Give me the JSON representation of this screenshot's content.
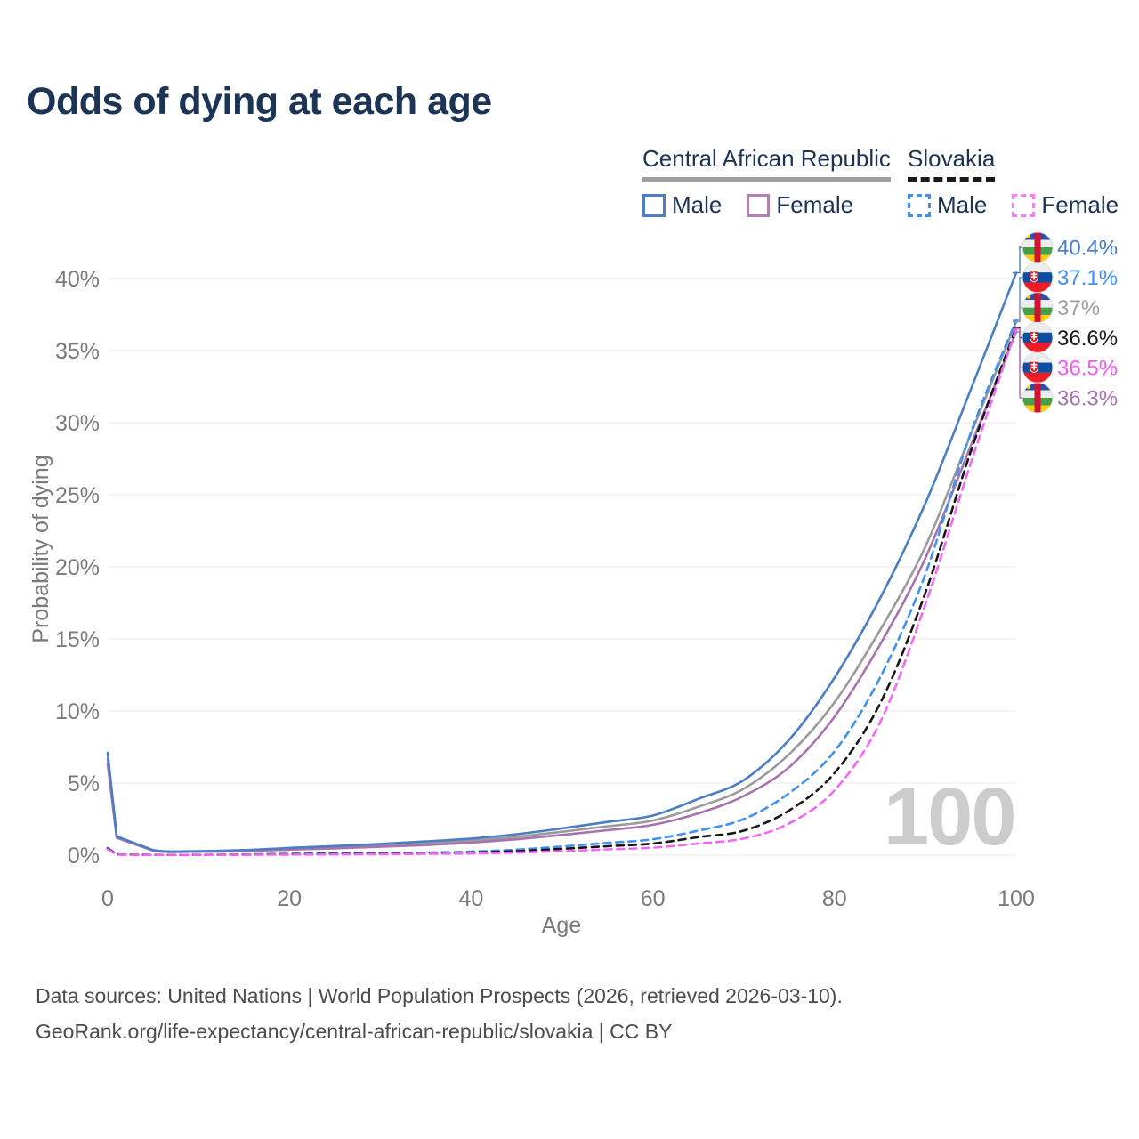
{
  "title": "Odds of dying at each age",
  "watermark": "100",
  "legend": {
    "groups": [
      {
        "label": "Central African Republic",
        "underline_color": "#9e9e9e",
        "underline_style": "solid",
        "items": [
          {
            "label": "Male",
            "color": "#4a7dc4",
            "style": "solid"
          },
          {
            "label": "Female",
            "color": "#b57fb5",
            "style": "solid"
          }
        ]
      },
      {
        "label": "Slovakia",
        "underline_color": "#1a1a1a",
        "underline_style": "dashed",
        "items": [
          {
            "label": "Male",
            "color": "#4191f5",
            "style": "dashed"
          },
          {
            "label": "Female",
            "color": "#f97df9",
            "style": "dashed"
          }
        ]
      }
    ]
  },
  "chart_data": {
    "type": "line",
    "title": "Odds of dying at each age",
    "xlabel": "Age",
    "ylabel": "Probability of dying",
    "xlim": [
      0,
      100
    ],
    "ylim": [
      0,
      42
    ],
    "grid": "horizontal",
    "legend_position": "top-right",
    "xticks": [
      0,
      20,
      40,
      60,
      80,
      100
    ],
    "yticks": [
      0,
      5,
      10,
      15,
      20,
      25,
      30,
      35,
      40
    ],
    "ytick_labels": [
      "0%",
      "5%",
      "10%",
      "15%",
      "20%",
      "25%",
      "30%",
      "35%",
      "40%"
    ],
    "x": [
      0,
      1,
      5,
      10,
      15,
      20,
      25,
      30,
      35,
      40,
      45,
      50,
      55,
      60,
      65,
      70,
      75,
      80,
      85,
      90,
      95,
      100
    ],
    "series": [
      {
        "id": "car-both",
        "name": "Central African Republic",
        "sex": "both",
        "color": "#9a9a9a",
        "dash": false,
        "values": [
          6.7,
          1.25,
          0.33,
          0.26,
          0.31,
          0.44,
          0.55,
          0.68,
          0.82,
          1.0,
          1.27,
          1.62,
          2.0,
          2.4,
          3.35,
          4.6,
          7.0,
          10.6,
          15.6,
          21.4,
          29.2,
          37.0
        ]
      },
      {
        "id": "car-female",
        "name": "Central African Republic",
        "sex": "female",
        "color": "#a673ae",
        "dash": false,
        "values": [
          6.3,
          1.2,
          0.31,
          0.24,
          0.28,
          0.38,
          0.47,
          0.58,
          0.7,
          0.87,
          1.1,
          1.4,
          1.73,
          2.1,
          2.9,
          4.1,
          6.1,
          9.6,
          14.6,
          20.6,
          28.4,
          36.3
        ]
      },
      {
        "id": "car-male",
        "name": "Central African Republic",
        "sex": "male",
        "color": "#4a7dc4",
        "dash": false,
        "values": [
          7.1,
          1.3,
          0.35,
          0.28,
          0.35,
          0.5,
          0.63,
          0.78,
          0.95,
          1.15,
          1.45,
          1.85,
          2.3,
          2.75,
          3.9,
          5.2,
          8.0,
          12.3,
          17.8,
          24.4,
          32.3,
          40.4
        ]
      },
      {
        "id": "svk-male",
        "name": "Slovakia",
        "sex": "male",
        "color": "#4191f5",
        "dash": true,
        "values": [
          0.5,
          0.05,
          0.02,
          0.02,
          0.05,
          0.09,
          0.11,
          0.13,
          0.17,
          0.25,
          0.38,
          0.6,
          0.85,
          1.1,
          1.7,
          2.5,
          4.3,
          7.2,
          12.3,
          19.5,
          29.3,
          37.1
        ]
      },
      {
        "id": "svk-both",
        "name": "Slovakia",
        "sex": "both",
        "color": "#161616",
        "dash": true,
        "values": [
          0.45,
          0.045,
          0.02,
          0.018,
          0.04,
          0.06,
          0.08,
          0.1,
          0.13,
          0.18,
          0.28,
          0.44,
          0.62,
          0.8,
          1.25,
          1.7,
          3.1,
          5.7,
          10.5,
          18.2,
          28.0,
          36.6
        ]
      },
      {
        "id": "svk-female",
        "name": "Slovakia",
        "sex": "female",
        "color": "#f467f4",
        "dash": true,
        "values": [
          0.4,
          0.04,
          0.015,
          0.015,
          0.03,
          0.04,
          0.05,
          0.07,
          0.09,
          0.12,
          0.18,
          0.28,
          0.4,
          0.52,
          0.8,
          1.15,
          2.2,
          4.5,
          9.2,
          17.4,
          27.2,
          36.5
        ]
      }
    ],
    "end_labels": [
      {
        "series": "car-male",
        "label": "40.4%",
        "color": "#4a7dc4",
        "flag": "central-african-republic"
      },
      {
        "series": "svk-male",
        "label": "37.1%",
        "color": "#4191f5",
        "flag": "slovakia"
      },
      {
        "series": "car-both",
        "label": "37%",
        "color": "#9e9e9e",
        "flag": "central-african-republic"
      },
      {
        "series": "svk-both",
        "label": "36.6%",
        "color": "#1a1a1a",
        "flag": "slovakia"
      },
      {
        "series": "svk-female",
        "label": "36.5%",
        "color": "#f558f5",
        "flag": "slovakia"
      },
      {
        "series": "car-female",
        "label": "36.3%",
        "color": "#a673ae",
        "flag": "central-african-republic"
      }
    ],
    "hover_age": "100"
  },
  "footer": {
    "line1": "Data sources: United Nations | World Population Prospects (2026, retrieved 2026-03-10).",
    "line2": "GeoRank.org/life-expectancy/central-african-republic/slovakia | CC BY"
  }
}
